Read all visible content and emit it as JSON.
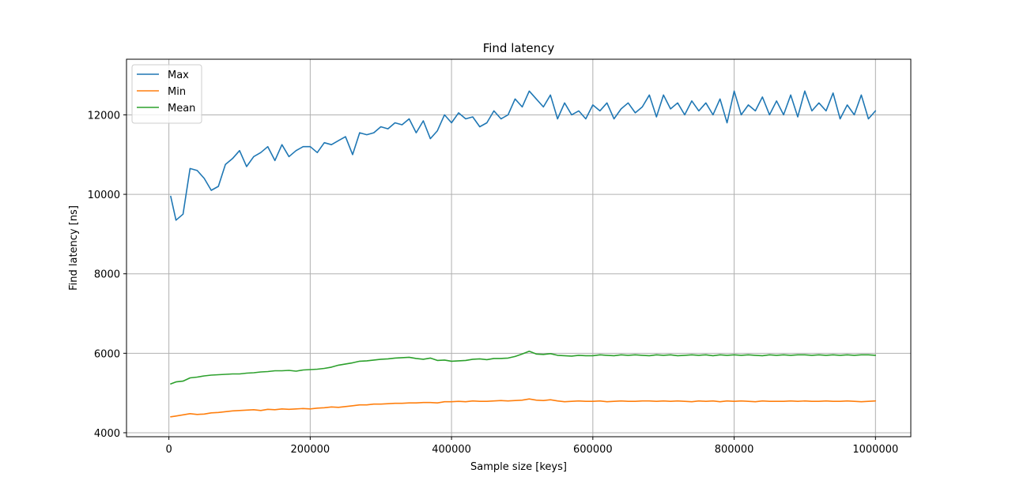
{
  "chart_data": {
    "type": "line",
    "title": "Find latency",
    "xlabel": "Sample size [keys]",
    "ylabel": "Find latency [ns]",
    "xlim": [
      -60000,
      1050000
    ],
    "ylim": [
      3900,
      13400
    ],
    "xticks": [
      0,
      200000,
      400000,
      600000,
      800000,
      1000000
    ],
    "xtick_labels": [
      "0",
      "200000",
      "400000",
      "600000",
      "800000",
      "1000000"
    ],
    "yticks": [
      4000,
      6000,
      8000,
      10000,
      12000
    ],
    "ytick_labels": [
      "4000",
      "6000",
      "8000",
      "10000",
      "12000"
    ],
    "grid": true,
    "legend_position": "top-left",
    "x": [
      2500,
      10000,
      20000,
      30000,
      40000,
      50000,
      60000,
      70000,
      80000,
      90000,
      100000,
      110000,
      120000,
      130000,
      140000,
      150000,
      160000,
      170000,
      180000,
      190000,
      200000,
      210000,
      220000,
      230000,
      240000,
      250000,
      260000,
      270000,
      280000,
      290000,
      300000,
      310000,
      320000,
      330000,
      340000,
      350000,
      360000,
      370000,
      380000,
      390000,
      400000,
      410000,
      420000,
      430000,
      440000,
      450000,
      460000,
      470000,
      480000,
      490000,
      500000,
      510000,
      520000,
      530000,
      540000,
      550000,
      560000,
      570000,
      580000,
      590000,
      600000,
      610000,
      620000,
      630000,
      640000,
      650000,
      660000,
      670000,
      680000,
      690000,
      700000,
      710000,
      720000,
      730000,
      740000,
      750000,
      760000,
      770000,
      780000,
      790000,
      800000,
      810000,
      820000,
      830000,
      840000,
      850000,
      860000,
      870000,
      880000,
      890000,
      900000,
      910000,
      920000,
      930000,
      940000,
      950000,
      960000,
      970000,
      980000,
      990000,
      1000000
    ],
    "series": [
      {
        "name": "Max",
        "color": "#1f77b4",
        "values": [
          9950,
          9350,
          9500,
          10650,
          10600,
          10400,
          10100,
          10200,
          10750,
          10900,
          11100,
          10700,
          10950,
          11050,
          11200,
          10850,
          11250,
          10950,
          11100,
          11200,
          11200,
          11050,
          11300,
          11250,
          11350,
          11450,
          11000,
          11550,
          11500,
          11550,
          11700,
          11650,
          11800,
          11750,
          11900,
          11550,
          11850,
          11400,
          11600,
          12000,
          11800,
          12050,
          11900,
          11950,
          11700,
          11800,
          12100,
          11900,
          12000,
          12400,
          12200,
          12600,
          12400,
          12200,
          12500,
          11900,
          12300,
          12000,
          12100,
          11900,
          12250,
          12100,
          12300,
          11900,
          12150,
          12300,
          12050,
          12200,
          12500,
          11950,
          12500,
          12150,
          12300,
          12000,
          12350,
          12100,
          12300,
          12000,
          12400,
          11800,
          12600,
          12000,
          12250,
          12100,
          12450,
          12000,
          12350,
          12000,
          12500,
          11950,
          12600,
          12100,
          12300,
          12100,
          12550,
          11900,
          12250,
          12000,
          12500,
          11900,
          12100
        ]
      },
      {
        "name": "Min",
        "color": "#ff7f0e",
        "values": [
          4400,
          4420,
          4450,
          4480,
          4460,
          4470,
          4500,
          4510,
          4530,
          4550,
          4560,
          4570,
          4580,
          4560,
          4590,
          4580,
          4600,
          4590,
          4600,
          4610,
          4600,
          4620,
          4630,
          4650,
          4640,
          4660,
          4680,
          4700,
          4700,
          4720,
          4720,
          4730,
          4740,
          4740,
          4750,
          4750,
          4760,
          4760,
          4750,
          4780,
          4780,
          4790,
          4780,
          4800,
          4790,
          4790,
          4800,
          4810,
          4800,
          4810,
          4820,
          4850,
          4820,
          4810,
          4830,
          4800,
          4780,
          4790,
          4800,
          4790,
          4790,
          4800,
          4780,
          4790,
          4800,
          4790,
          4790,
          4800,
          4800,
          4790,
          4800,
          4790,
          4800,
          4790,
          4780,
          4800,
          4790,
          4800,
          4780,
          4800,
          4790,
          4800,
          4790,
          4780,
          4800,
          4790,
          4790,
          4790,
          4800,
          4790,
          4800,
          4790,
          4790,
          4800,
          4790,
          4790,
          4800,
          4790,
          4780,
          4790,
          4800
        ]
      },
      {
        "name": "Mean",
        "color": "#2ca02c",
        "values": [
          5230,
          5280,
          5300,
          5380,
          5400,
          5430,
          5450,
          5460,
          5470,
          5480,
          5480,
          5500,
          5510,
          5530,
          5540,
          5560,
          5560,
          5570,
          5550,
          5580,
          5590,
          5600,
          5620,
          5650,
          5700,
          5730,
          5760,
          5800,
          5810,
          5830,
          5850,
          5860,
          5880,
          5890,
          5900,
          5870,
          5850,
          5880,
          5820,
          5830,
          5800,
          5810,
          5820,
          5850,
          5860,
          5840,
          5870,
          5870,
          5880,
          5920,
          5980,
          6050,
          5980,
          5970,
          5990,
          5950,
          5940,
          5930,
          5950,
          5940,
          5940,
          5960,
          5950,
          5940,
          5960,
          5950,
          5960,
          5950,
          5940,
          5960,
          5950,
          5960,
          5940,
          5950,
          5960,
          5950,
          5960,
          5940,
          5960,
          5950,
          5960,
          5950,
          5960,
          5950,
          5940,
          5960,
          5950,
          5960,
          5950,
          5960,
          5960,
          5950,
          5960,
          5950,
          5960,
          5950,
          5960,
          5950,
          5960,
          5960,
          5950
        ]
      }
    ]
  }
}
